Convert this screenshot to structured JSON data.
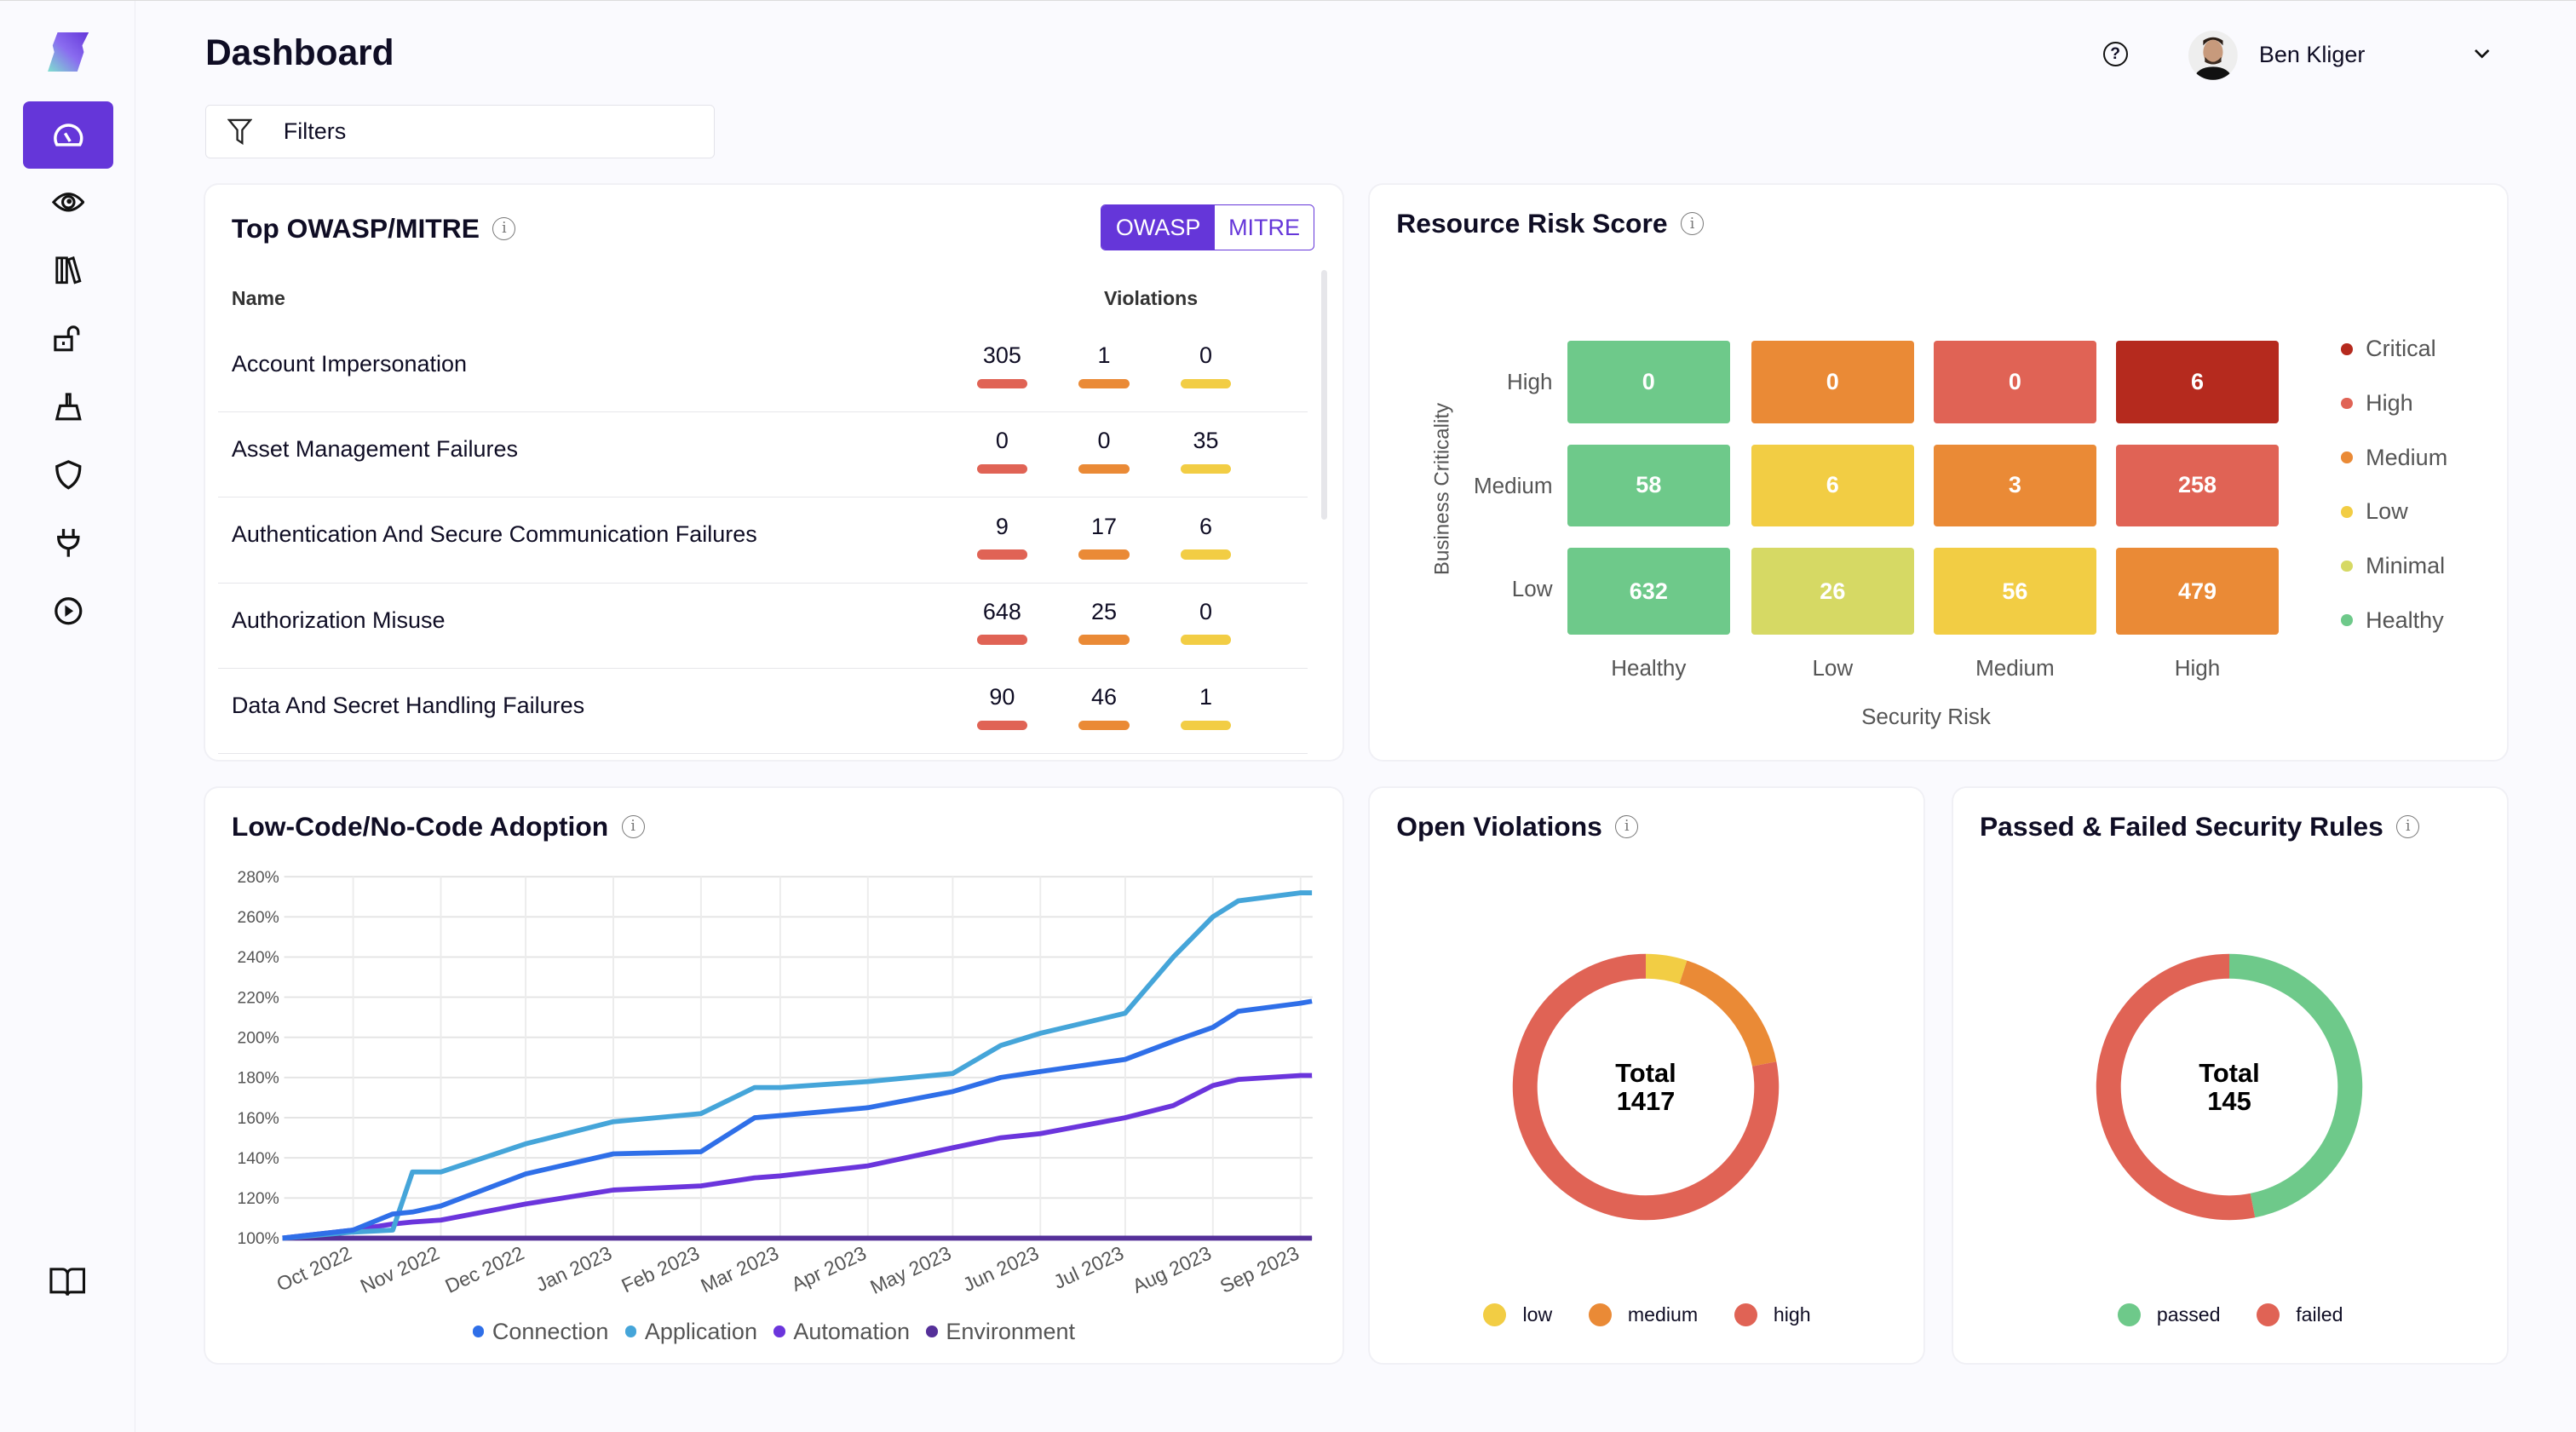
{
  "header": {
    "title": "Dashboard",
    "filters_label": "Filters",
    "user_name": "Ben Kliger"
  },
  "sidebar": {
    "items": [
      {
        "icon": "dashboard-gauge-icon",
        "active": true
      },
      {
        "icon": "eye-icon"
      },
      {
        "icon": "library-icon"
      },
      {
        "icon": "unlock-icon"
      },
      {
        "icon": "broom-icon"
      },
      {
        "icon": "shield-icon"
      },
      {
        "icon": "plug-icon"
      },
      {
        "icon": "play-icon"
      }
    ],
    "bottom_icon": "book-icon"
  },
  "owasp": {
    "title": "Top OWASP/MITRE",
    "toggle": [
      "OWASP",
      "MITRE"
    ],
    "selected": "OWASP",
    "col_name": "Name",
    "col_violations": "Violations",
    "rows": [
      {
        "name": "Account Impersonation",
        "high": "305",
        "medium": "1",
        "low": "0"
      },
      {
        "name": "Asset Management Failures",
        "high": "0",
        "medium": "0",
        "low": "35"
      },
      {
        "name": "Authentication And Secure Communication Failures",
        "high": "9",
        "medium": "17",
        "low": "6"
      },
      {
        "name": "Authorization Misuse",
        "high": "648",
        "medium": "25",
        "low": "0"
      },
      {
        "name": "Data And Secret Handling Failures",
        "high": "90",
        "medium": "46",
        "low": "1"
      }
    ],
    "colors": {
      "high": "#e06355",
      "medium": "#ea8a36",
      "low": "#f2cd44"
    }
  },
  "risk": {
    "title": "Resource Risk Score",
    "ylabel": "Business Criticality",
    "xlabel": "Security Risk",
    "rows": [
      "High",
      "Medium",
      "Low"
    ],
    "cols": [
      "Healthy",
      "Low",
      "Medium",
      "High"
    ],
    "values": [
      [
        "0",
        "0",
        "0",
        "6"
      ],
      [
        "58",
        "6",
        "3",
        "258"
      ],
      [
        "632",
        "26",
        "56",
        "479"
      ]
    ],
    "colors": [
      [
        "#6ec98a",
        "#ea8a36",
        "#e06355",
        "#b52a1e"
      ],
      [
        "#6ec98a",
        "#f2cd44",
        "#ea8a36",
        "#e06355"
      ],
      [
        "#6ec98a",
        "#d6d964",
        "#f2cd44",
        "#ea8a36"
      ]
    ],
    "legend": [
      {
        "label": "Critical",
        "color": "#b52a1e"
      },
      {
        "label": "High",
        "color": "#e06355"
      },
      {
        "label": "Medium",
        "color": "#ea8a36"
      },
      {
        "label": "Low",
        "color": "#f2cd44"
      },
      {
        "label": "Minimal",
        "color": "#d6d964"
      },
      {
        "label": "Healthy",
        "color": "#6ec98a"
      }
    ]
  },
  "chart_data": [
    {
      "type": "line",
      "title": "Low-Code/No-Code Adoption",
      "ylim": [
        100,
        280
      ],
      "yticks": [
        "100%",
        "120%",
        "140%",
        "160%",
        "180%",
        "200%",
        "220%",
        "240%",
        "260%",
        "280%"
      ],
      "xticks": [
        "Oct 2022",
        "Nov 2022",
        "Dec 2022",
        "Jan 2023",
        "Feb 2023",
        "Mar 2023",
        "Apr 2023",
        "May 2023",
        "Jun 2023",
        "Jul 2023",
        "Aug 2023",
        "Sep 2023"
      ],
      "grid": true,
      "legend_position": "bottom",
      "x": [
        "2022-09-06",
        "2022-10-01",
        "2022-10-15",
        "2022-10-22",
        "2022-11-01",
        "2022-12-01",
        "2023-01-01",
        "2023-02-01",
        "2023-02-20",
        "2023-03-01",
        "2023-04-01",
        "2023-05-01",
        "2023-05-18",
        "2023-06-01",
        "2023-07-01",
        "2023-07-18",
        "2023-08-01",
        "2023-08-10",
        "2023-09-01",
        "2023-09-05"
      ],
      "series": [
        {
          "name": "Connection",
          "color": "#2f6fe8",
          "values": [
            100,
            104,
            112,
            113,
            116,
            132,
            142,
            143,
            160,
            161,
            165,
            173,
            180,
            183,
            189,
            198,
            205,
            213,
            217,
            218
          ]
        },
        {
          "name": "Application",
          "color": "#45a5d9",
          "values": [
            100,
            103,
            104,
            133,
            133,
            147,
            158,
            162,
            175,
            175,
            178,
            182,
            196,
            202,
            212,
            240,
            260,
            268,
            272,
            272
          ]
        },
        {
          "name": "Automation",
          "color": "#6b35dc",
          "values": [
            100,
            104,
            107,
            108,
            109,
            117,
            124,
            126,
            130,
            131,
            136,
            145,
            150,
            152,
            160,
            166,
            176,
            179,
            181,
            181
          ]
        },
        {
          "name": "Environment",
          "color": "#553099",
          "values": [
            100,
            100,
            100,
            100,
            100,
            100,
            100,
            100,
            100,
            100,
            100,
            100,
            100,
            100,
            100,
            100,
            100,
            100,
            100,
            100
          ]
        }
      ]
    },
    {
      "type": "pie",
      "title": "Open Violations",
      "center_label": "Total",
      "total": "1417",
      "categories": [
        "low",
        "medium",
        "high"
      ],
      "values": [
        71,
        240,
        1106
      ],
      "colors": [
        "#f2cd44",
        "#ea8a36",
        "#e06355"
      ]
    },
    {
      "type": "pie",
      "title": "Passed & Failed Security Rules",
      "center_label": "Total",
      "total": "145",
      "categories": [
        "passed",
        "failed"
      ],
      "values": [
        68,
        77
      ],
      "colors": [
        "#6ec98a",
        "#e06355"
      ]
    }
  ]
}
